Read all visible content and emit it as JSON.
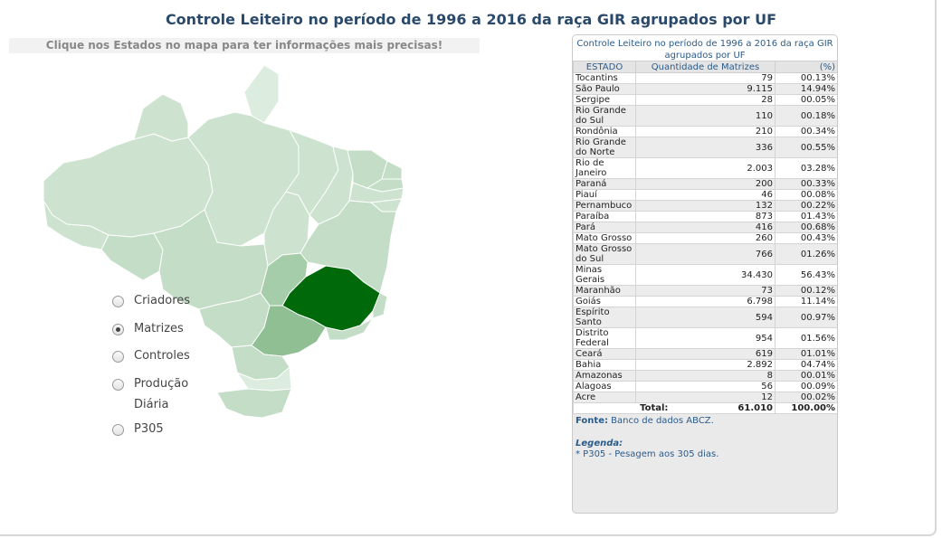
{
  "page": {
    "title": "Controle Leiteiro no período de 1996 a 2016 da raça GIR agrupados por UF",
    "hint": "Clique nos Estados no mapa para ter informações mais precisas!"
  },
  "options": [
    {
      "label": "Criadores",
      "checked": false
    },
    {
      "label": "Matrizes",
      "checked": true
    },
    {
      "label": "Controles",
      "checked": false
    },
    {
      "label": "Produção Diária",
      "checked": false
    },
    {
      "label": "P305",
      "checked": false
    }
  ],
  "map": {
    "highlight_color": "#006a0a",
    "colors": [
      "#dcecde",
      "#cde3d0",
      "#c3ddc6",
      "#a6cda9",
      "#8fbf93",
      "#006a0a"
    ]
  },
  "table": {
    "title": "Controle Leiteiro no período de 1996 a 2016 da raça GIR agrupados por UF",
    "headers": {
      "state": "ESTADO",
      "qty": "Quantidade de Matrizes",
      "pct": "(%)"
    },
    "rows": [
      {
        "state": "Tocantins",
        "qty": "79",
        "pct": "00.13%"
      },
      {
        "state": "São Paulo",
        "qty": "9.115",
        "pct": "14.94%"
      },
      {
        "state": "Sergipe",
        "qty": "28",
        "pct": "00.05%"
      },
      {
        "state": "Rio Grande do Sul",
        "qty": "110",
        "pct": "00.18%"
      },
      {
        "state": "Rondônia",
        "qty": "210",
        "pct": "00.34%"
      },
      {
        "state": "Rio Grande do Norte",
        "qty": "336",
        "pct": "00.55%"
      },
      {
        "state": "Rio de Janeiro",
        "qty": "2.003",
        "pct": "03.28%"
      },
      {
        "state": "Paraná",
        "qty": "200",
        "pct": "00.33%"
      },
      {
        "state": "Piauí",
        "qty": "46",
        "pct": "00.08%"
      },
      {
        "state": "Pernambuco",
        "qty": "132",
        "pct": "00.22%"
      },
      {
        "state": "Paraíba",
        "qty": "873",
        "pct": "01.43%"
      },
      {
        "state": "Pará",
        "qty": "416",
        "pct": "00.68%"
      },
      {
        "state": "Mato Grosso",
        "qty": "260",
        "pct": "00.43%"
      },
      {
        "state": "Mato Grosso do Sul",
        "qty": "766",
        "pct": "01.26%"
      },
      {
        "state": "Minas Gerais",
        "qty": "34.430",
        "pct": "56.43%"
      },
      {
        "state": "Maranhão",
        "qty": "73",
        "pct": "00.12%"
      },
      {
        "state": "Goiás",
        "qty": "6.798",
        "pct": "11.14%"
      },
      {
        "state": "Espírito Santo",
        "qty": "594",
        "pct": "00.97%"
      },
      {
        "state": "Distrito Federal",
        "qty": "954",
        "pct": "01.56%"
      },
      {
        "state": "Ceará",
        "qty": "619",
        "pct": "01.01%"
      },
      {
        "state": "Bahia",
        "qty": "2.892",
        "pct": "04.74%"
      },
      {
        "state": "Amazonas",
        "qty": "8",
        "pct": "00.01%"
      },
      {
        "state": "Alagoas",
        "qty": "56",
        "pct": "00.09%"
      },
      {
        "state": "Acre",
        "qty": "12",
        "pct": "00.02%"
      }
    ],
    "total": {
      "label": "Total:",
      "qty": "61.010",
      "pct": "100.00%"
    },
    "fonte_label": "Fonte:",
    "fonte_text": " Banco de dados ABCZ.",
    "legenda_label": "Legenda:",
    "legenda_text": "* P305 - Pesagem aos 305 dias."
  }
}
